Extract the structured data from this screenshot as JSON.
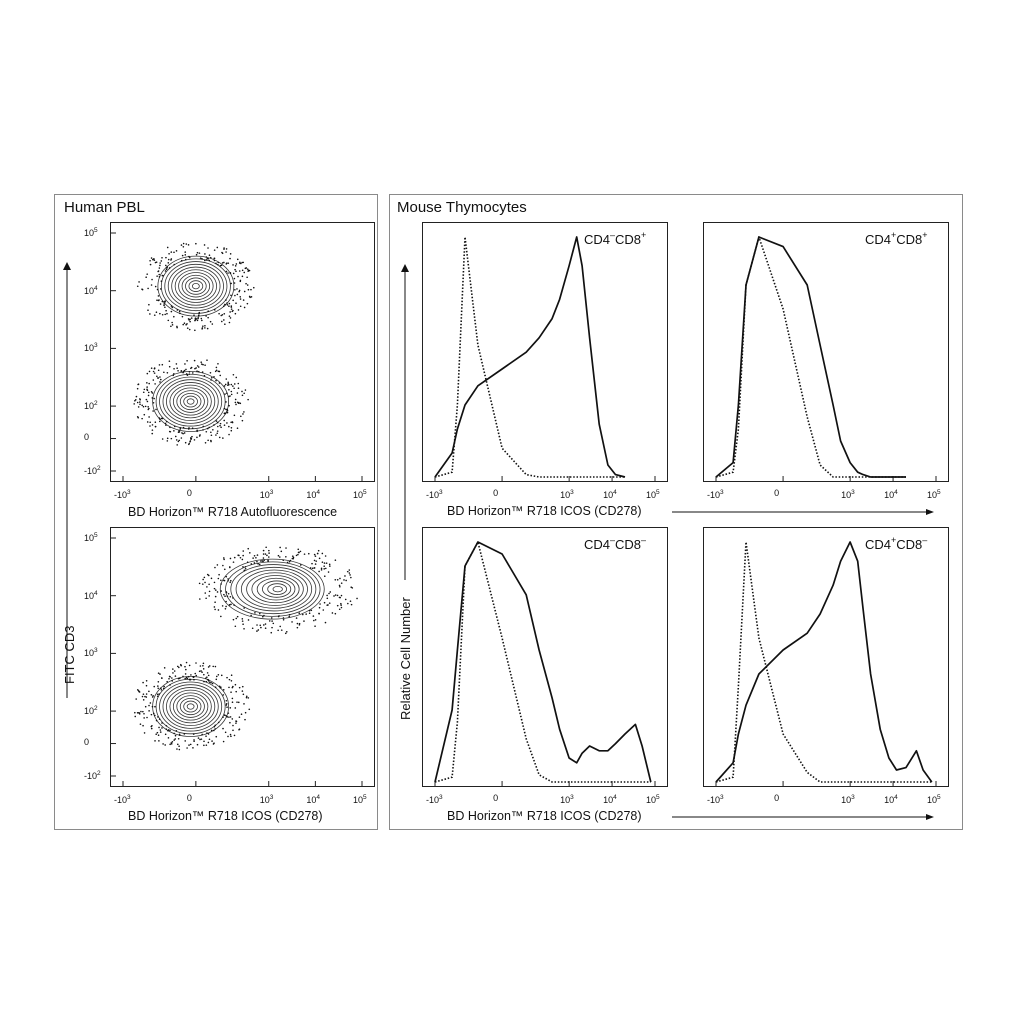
{
  "figure": {
    "left_panel": {
      "title": "Human PBL"
    },
    "right_panel": {
      "title": "Mouse Thymocytes"
    }
  },
  "chart_data": [
    {
      "id": "pbl-autofluor",
      "type": "scatter",
      "title": "",
      "xlabel": "BD Horizon™ R718  Autofluorescence",
      "ylabel": "FITC  CD3",
      "x_scale": "biexponential",
      "y_scale": "biexponential",
      "x_ticks": [
        "-10^3",
        "0",
        "10^3",
        "10^4",
        "10^5"
      ],
      "y_ticks": [
        "-10^2",
        "0",
        "10^2",
        "10^3",
        "10^4",
        "10^5"
      ],
      "xlim": [
        -1000,
        100000
      ],
      "ylim": [
        -100,
        100000
      ],
      "populations": [
        {
          "x_center": 0,
          "y_center": 12000,
          "description": "CD3+ events"
        },
        {
          "x_center": -20,
          "y_center": 120,
          "description": "CD3- events"
        }
      ]
    },
    {
      "id": "pbl-icos",
      "type": "scatter",
      "title": "",
      "xlabel": "BD Horizon™ R718  ICOS (CD278)",
      "ylabel": "FITC  CD3",
      "x_scale": "biexponential",
      "y_scale": "biexponential",
      "x_ticks": [
        "-10^3",
        "0",
        "10^3",
        "10^4",
        "10^5"
      ],
      "y_ticks": [
        "-10^2",
        "0",
        "10^2",
        "10^3",
        "10^4",
        "10^5"
      ],
      "xlim": [
        -1000,
        100000
      ],
      "ylim": [
        -100,
        100000
      ],
      "populations": [
        {
          "x_center": 1600,
          "y_center": 13000,
          "description": "CD3+ ICOS+ events"
        },
        {
          "x_center": -20,
          "y_center": 120,
          "description": "CD3- events"
        }
      ]
    },
    {
      "id": "thy-cd4neg-cd8pos",
      "type": "line",
      "label": {
        "a": "CD4",
        "a_sup": "–",
        "b": "CD8",
        "b_sup": "+"
      },
      "xlabel": "BD Horizon™ R718  ICOS (CD278)",
      "ylabel": "Relative Cell Number",
      "x_scale": "biexponential",
      "x_ticks": [
        "-10^3",
        "0",
        "10^3",
        "10^4",
        "10^5"
      ],
      "x": [
        -1000,
        -400,
        -300,
        -200,
        -100,
        0,
        100,
        200,
        400,
        600,
        1000,
        1500,
        2000,
        3000,
        5000,
        8000,
        12000,
        20000
      ],
      "series": [
        {
          "style": "solid",
          "values": [
            0.0,
            0.1,
            0.2,
            0.3,
            0.38,
            0.45,
            0.52,
            0.58,
            0.66,
            0.74,
            0.88,
            1.0,
            0.88,
            0.58,
            0.22,
            0.05,
            0.01,
            0.0
          ]
        },
        {
          "style": "dotted",
          "values": [
            0.0,
            0.02,
            0.3,
            1.0,
            0.55,
            0.12,
            0.01,
            0.0,
            0.0,
            0.0,
            0.0,
            0.0,
            0.0,
            0.0,
            0.0,
            0.0,
            0.0,
            0.0
          ]
        }
      ]
    },
    {
      "id": "thy-cd4pos-cd8pos",
      "type": "line",
      "label": {
        "a": "CD4",
        "a_sup": "+",
        "b": "CD8",
        "b_sup": "+"
      },
      "xlabel": "",
      "x_scale": "biexponential",
      "x_ticks": [
        "-10^3",
        "0",
        "10^3",
        "10^4",
        "10^5"
      ],
      "x": [
        -1000,
        -400,
        -300,
        -200,
        -100,
        0,
        100,
        200,
        400,
        600,
        1000,
        1500,
        2000,
        3000,
        5000,
        8000,
        12000,
        20000
      ],
      "series": [
        {
          "style": "solid",
          "values": [
            0.0,
            0.06,
            0.3,
            0.8,
            1.0,
            0.96,
            0.8,
            0.55,
            0.3,
            0.15,
            0.06,
            0.02,
            0.01,
            0.0,
            0.0,
            0.0,
            0.0,
            0.0
          ]
        },
        {
          "style": "dotted",
          "values": [
            0.0,
            0.02,
            0.2,
            0.8,
            1.0,
            0.7,
            0.25,
            0.05,
            0.0,
            0.0,
            0.0,
            0.0,
            0.0,
            0.0,
            0.0,
            0.0,
            0.0,
            0.0
          ]
        }
      ]
    },
    {
      "id": "thy-cd4neg-cd8neg",
      "type": "line",
      "label": {
        "a": "CD4",
        "a_sup": "–",
        "b": "CD8",
        "b_sup": "–"
      },
      "xlabel": "BD Horizon™ R718  ICOS (CD278)",
      "x_scale": "biexponential",
      "x_ticks": [
        "-10^3",
        "0",
        "10^3",
        "10^4",
        "10^5"
      ],
      "x": [
        -1000,
        -400,
        -300,
        -200,
        -100,
        0,
        100,
        200,
        400,
        600,
        1000,
        1500,
        2000,
        3000,
        5000,
        8000,
        12000,
        20000,
        35000,
        50000,
        80000
      ],
      "series": [
        {
          "style": "solid",
          "values": [
            0.0,
            0.3,
            0.55,
            0.9,
            1.0,
            0.95,
            0.78,
            0.55,
            0.35,
            0.22,
            0.1,
            0.08,
            0.12,
            0.15,
            0.13,
            0.13,
            0.16,
            0.2,
            0.24,
            0.15,
            0.0
          ]
        },
        {
          "style": "dotted",
          "values": [
            0.0,
            0.02,
            0.25,
            0.9,
            1.0,
            0.6,
            0.18,
            0.03,
            0.0,
            0.0,
            0.0,
            0.0,
            0.0,
            0.0,
            0.0,
            0.0,
            0.0,
            0.0,
            0.0,
            0.0,
            0.0
          ]
        }
      ]
    },
    {
      "id": "thy-cd4pos-cd8neg",
      "type": "line",
      "label": {
        "a": "CD4",
        "a_sup": "+",
        "b": "CD8",
        "b_sup": "–"
      },
      "xlabel": "",
      "x_scale": "biexponential",
      "x_ticks": [
        "-10^3",
        "0",
        "10^3",
        "10^4",
        "10^5"
      ],
      "x": [
        -1000,
        -400,
        -300,
        -200,
        -100,
        0,
        100,
        200,
        400,
        600,
        1000,
        1500,
        2000,
        3000,
        5000,
        8000,
        12000,
        20000,
        35000,
        50000,
        80000
      ],
      "series": [
        {
          "style": "solid",
          "values": [
            0.0,
            0.08,
            0.2,
            0.32,
            0.45,
            0.55,
            0.62,
            0.7,
            0.82,
            0.92,
            1.0,
            0.92,
            0.72,
            0.45,
            0.22,
            0.1,
            0.05,
            0.06,
            0.13,
            0.05,
            0.0
          ]
        },
        {
          "style": "dotted",
          "values": [
            0.0,
            0.02,
            0.4,
            1.0,
            0.6,
            0.2,
            0.04,
            0.0,
            0.0,
            0.0,
            0.0,
            0.0,
            0.0,
            0.0,
            0.0,
            0.0,
            0.0,
            0.0,
            0.0,
            0.0,
            0.0
          ]
        }
      ]
    }
  ],
  "shared_labels": {
    "pbl_ylabel": "FITC  CD3",
    "thy_ylabel": "Relative Cell Number",
    "thy_xlabel": "BD Horizon™ R718  ICOS (CD278)"
  }
}
